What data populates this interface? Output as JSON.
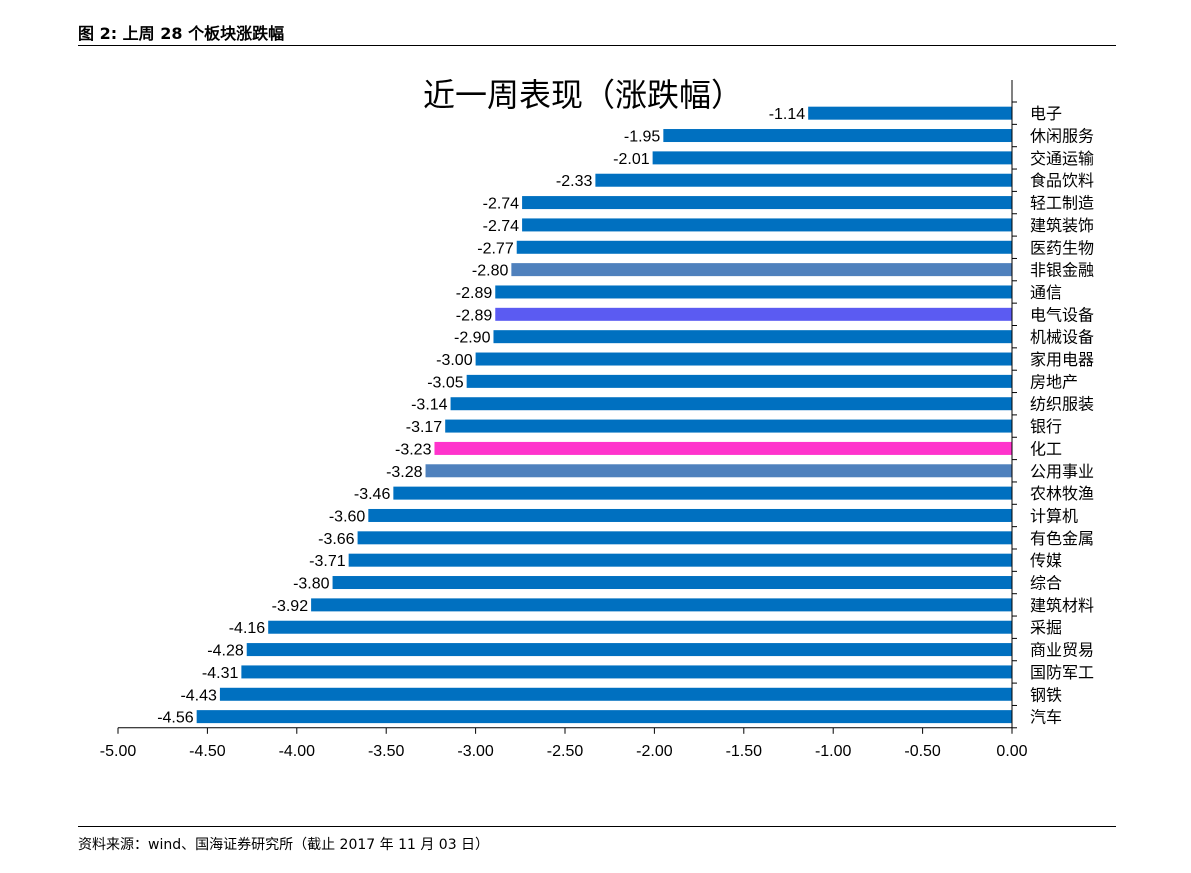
{
  "figure": {
    "header": "图 2:  上周 28 个板块涨跌幅",
    "source": "资料来源：wind、国海证券研究所（截止 2017 年 11 月 03 日）"
  },
  "chart_data": {
    "type": "bar",
    "orientation": "horizontal",
    "title": "近一周表现（涨跌幅）",
    "xlabel": "",
    "ylabel": "",
    "xlim": [
      -5.0,
      0.0
    ],
    "x_ticks": [
      "-5.00",
      "-4.50",
      "-4.00",
      "-3.50",
      "-3.00",
      "-2.50",
      "-2.00",
      "-1.50",
      "-1.00",
      "-0.50",
      "0.00"
    ],
    "grid": false,
    "legend": "none",
    "categories": [
      "电子",
      "休闲服务",
      "交通运输",
      "食品饮料",
      "轻工制造",
      "建筑装饰",
      "医药生物",
      "非银金融",
      "通信",
      "电气设备",
      "机械设备",
      "家用电器",
      "房地产",
      "纺织服装",
      "银行",
      "化工",
      "公用事业",
      "农林牧渔",
      "计算机",
      "有色金属",
      "传媒",
      "综合",
      "建筑材料",
      "采掘",
      "商业贸易",
      "国防军工",
      "钢铁",
      "汽车"
    ],
    "values": [
      -1.14,
      -1.95,
      -2.01,
      -2.33,
      -2.74,
      -2.74,
      -2.77,
      -2.8,
      -2.89,
      -2.89,
      -2.9,
      -3.0,
      -3.05,
      -3.14,
      -3.17,
      -3.23,
      -3.28,
      -3.46,
      -3.6,
      -3.66,
      -3.71,
      -3.8,
      -3.92,
      -4.16,
      -4.28,
      -4.31,
      -4.43,
      -4.56
    ],
    "value_labels": [
      "-1.14",
      "-1.95",
      "-2.01",
      "-2.33",
      "-2.74",
      "-2.74",
      "-2.77",
      "-2.80",
      "-2.89",
      "-2.89",
      "-2.90",
      "-3.00",
      "-3.05",
      "-3.14",
      "-3.17",
      "-3.23",
      "-3.28",
      "-3.46",
      "-3.60",
      "-3.66",
      "-3.71",
      "-3.80",
      "-3.92",
      "-4.16",
      "-4.28",
      "-4.31",
      "-4.43",
      "-4.56"
    ],
    "colors": [
      "#0070C0",
      "#0070C0",
      "#0070C0",
      "#0070C0",
      "#0070C0",
      "#0070C0",
      "#0070C0",
      "#4F81BD",
      "#0070C0",
      "#5B5BF2",
      "#0070C0",
      "#0070C0",
      "#0070C0",
      "#0070C0",
      "#0070C0",
      "#FF33CC",
      "#4F81BD",
      "#0070C0",
      "#0070C0",
      "#0070C0",
      "#0070C0",
      "#0070C0",
      "#0070C0",
      "#0070C0",
      "#0070C0",
      "#0070C0",
      "#0070C0",
      "#0070C0"
    ]
  }
}
